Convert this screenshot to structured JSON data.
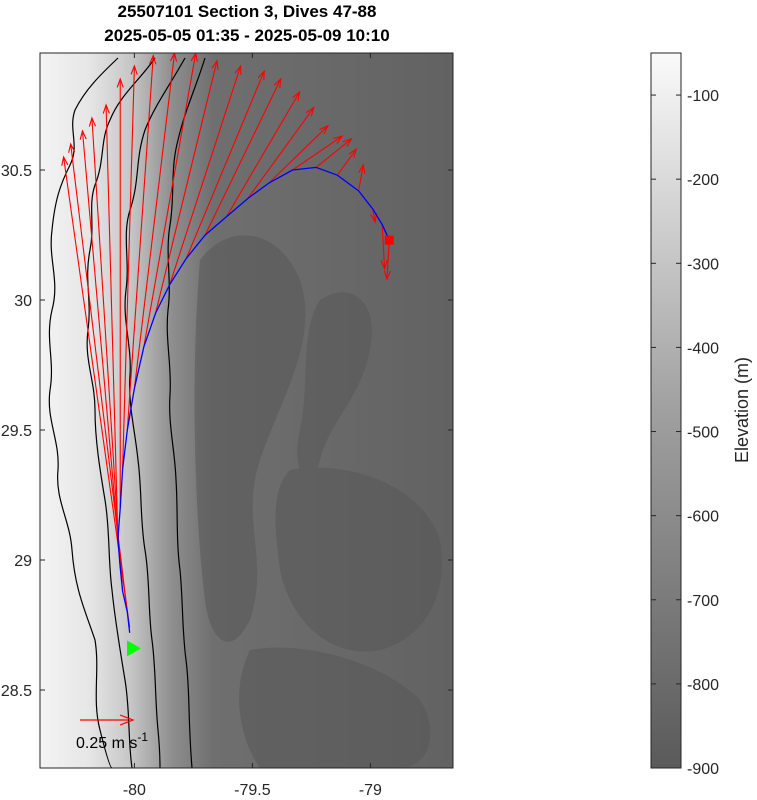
{
  "title": {
    "line1": "25507101 Section 3, Dives 47-88",
    "line2": "2025-05-05 01:35 - 2025-05-09 10:10"
  },
  "map": {
    "lon_range": [
      -80.4,
      -78.65
    ],
    "lat_range": [
      28.2,
      30.95
    ],
    "x_ticks": [
      {
        "value": -80,
        "label": "-80"
      },
      {
        "value": -79.5,
        "label": "-79.5"
      },
      {
        "value": -79,
        "label": "-79"
      }
    ],
    "y_ticks": [
      {
        "value": 28.5,
        "label": "28.5"
      },
      {
        "value": 29,
        "label": "29"
      },
      {
        "value": 29.5,
        "label": "29.5"
      },
      {
        "value": 30,
        "label": "30"
      },
      {
        "value": 30.5,
        "label": "30.5"
      }
    ],
    "colors": {
      "track": "#0000ff",
      "current_vectors": "#ff0000",
      "start_marker": "#00ff00",
      "end_marker": "#ff0000",
      "contours": "#000000"
    }
  },
  "scale_vector": {
    "label_main": "0.25 m s",
    "label_exp": "-1"
  },
  "colorbar": {
    "label": "Elevation (m)",
    "range": [
      -900,
      -50
    ],
    "ticks": [
      {
        "value": -100,
        "label": "-100"
      },
      {
        "value": -200,
        "label": "-200"
      },
      {
        "value": -300,
        "label": "-300"
      },
      {
        "value": -400,
        "label": "-400"
      },
      {
        "value": -500,
        "label": "-500"
      },
      {
        "value": -600,
        "label": "-600"
      },
      {
        "value": -700,
        "label": "-700"
      },
      {
        "value": -800,
        "label": "-800"
      },
      {
        "value": -900,
        "label": "-900"
      }
    ]
  },
  "glider_track": {
    "start": {
      "lon": -80.01,
      "lat": 28.66
    },
    "end": {
      "lon": -78.92,
      "lat": 30.23
    },
    "points": [
      [
        -80.02,
        28.72
      ],
      [
        -80.03,
        28.8
      ],
      [
        -80.05,
        28.88
      ],
      [
        -80.06,
        28.97
      ],
      [
        -80.07,
        29.08
      ],
      [
        -80.06,
        29.2
      ],
      [
        -80.05,
        29.35
      ],
      [
        -80.03,
        29.5
      ],
      [
        -80.0,
        29.66
      ],
      [
        -79.96,
        29.82
      ],
      [
        -79.91,
        29.95
      ],
      [
        -79.85,
        30.06
      ],
      [
        -79.78,
        30.16
      ],
      [
        -79.7,
        30.25
      ],
      [
        -79.61,
        30.32
      ],
      [
        -79.52,
        30.39
      ],
      [
        -79.43,
        30.45
      ],
      [
        -79.33,
        30.5
      ],
      [
        -79.23,
        30.51
      ],
      [
        -79.14,
        30.48
      ],
      [
        -79.05,
        30.42
      ],
      [
        -78.99,
        30.35
      ],
      [
        -78.95,
        30.29
      ],
      [
        -78.92,
        30.23
      ]
    ]
  },
  "current_vectors": [
    {
      "lon": -80.02,
      "lat": 28.74,
      "tip_lon": -80.3,
      "tip_lat": 30.55
    },
    {
      "lon": -80.03,
      "lat": 28.8,
      "tip_lon": -80.27,
      "tip_lat": 30.6
    },
    {
      "lon": -80.05,
      "lat": 28.88,
      "tip_lon": -80.22,
      "tip_lat": 30.65
    },
    {
      "lon": -80.06,
      "lat": 28.97,
      "tip_lon": -80.18,
      "tip_lat": 30.7
    },
    {
      "lon": -80.07,
      "lat": 29.08,
      "tip_lon": -80.12,
      "tip_lat": 30.75
    },
    {
      "lon": -80.06,
      "lat": 29.2,
      "tip_lon": -80.06,
      "tip_lat": 30.85
    },
    {
      "lon": -80.05,
      "lat": 29.35,
      "tip_lon": -80.0,
      "tip_lat": 30.9
    },
    {
      "lon": -80.03,
      "lat": 29.5,
      "tip_lon": -79.92,
      "tip_lat": 30.94
    },
    {
      "lon": -80.0,
      "lat": 29.66,
      "tip_lon": -79.83,
      "tip_lat": 30.95
    },
    {
      "lon": -79.96,
      "lat": 29.82,
      "tip_lon": -79.74,
      "tip_lat": 30.95
    },
    {
      "lon": -79.91,
      "lat": 29.95,
      "tip_lon": -79.65,
      "tip_lat": 30.92
    },
    {
      "lon": -79.85,
      "lat": 30.06,
      "tip_lon": -79.55,
      "tip_lat": 30.9
    },
    {
      "lon": -79.78,
      "lat": 30.16,
      "tip_lon": -79.45,
      "tip_lat": 30.88
    },
    {
      "lon": -79.7,
      "lat": 30.25,
      "tip_lon": -79.38,
      "tip_lat": 30.85
    },
    {
      "lon": -79.61,
      "lat": 30.32,
      "tip_lon": -79.3,
      "tip_lat": 30.8
    },
    {
      "lon": -79.52,
      "lat": 30.39,
      "tip_lon": -79.24,
      "tip_lat": 30.74
    },
    {
      "lon": -79.43,
      "lat": 30.45,
      "tip_lon": -79.18,
      "tip_lat": 30.67
    },
    {
      "lon": -79.33,
      "lat": 30.5,
      "tip_lon": -79.12,
      "tip_lat": 30.63
    },
    {
      "lon": -79.23,
      "lat": 30.51,
      "tip_lon": -79.08,
      "tip_lat": 30.62
    },
    {
      "lon": -79.14,
      "lat": 30.48,
      "tip_lon": -79.06,
      "tip_lat": 30.58
    },
    {
      "lon": -79.05,
      "lat": 30.42,
      "tip_lon": -79.03,
      "tip_lat": 30.52
    },
    {
      "lon": -78.99,
      "lat": 30.35,
      "tip_lon": -78.98,
      "tip_lat": 30.3
    },
    {
      "lon": -78.95,
      "lat": 30.29,
      "tip_lon": -78.94,
      "tip_lat": 30.12
    },
    {
      "lon": -78.92,
      "lat": 30.23,
      "tip_lon": -78.93,
      "tip_lat": 30.08
    }
  ]
}
